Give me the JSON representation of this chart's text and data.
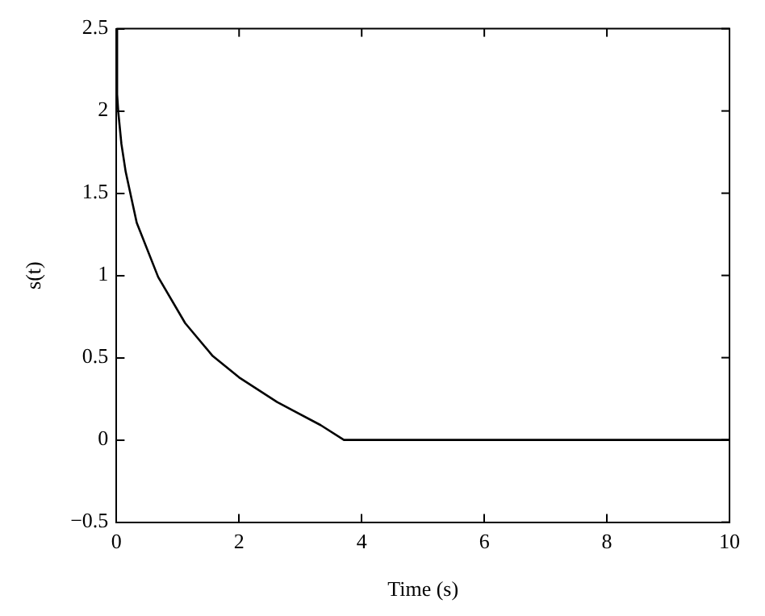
{
  "chart_data": {
    "type": "line",
    "xlabel": "Time (s)",
    "ylabel": "s(t)",
    "series": [
      {
        "color": "#000000",
        "x": [
          0,
          0.01,
          0.03,
          0.08,
          0.15,
          0.33,
          0.68,
          1.12,
          1.57,
          2,
          2.62,
          3.33,
          3.71,
          10
        ],
        "values": [
          2.5,
          2.1,
          1.99,
          1.8,
          1.63,
          1.32,
          0.99,
          0.71,
          0.51,
          0.38,
          0.23,
          0.09,
          0,
          0
        ]
      }
    ],
    "xlim": [
      0,
      10
    ],
    "xticks": [
      0,
      2,
      4,
      6,
      8,
      10
    ],
    "ylim": [
      -0.5,
      2.5
    ],
    "yticks": [
      -0.5,
      0,
      0.5,
      1,
      1.5,
      2,
      2.5
    ],
    "grid": false,
    "legend": false,
    "marker": "none",
    "line_style": "solid"
  }
}
